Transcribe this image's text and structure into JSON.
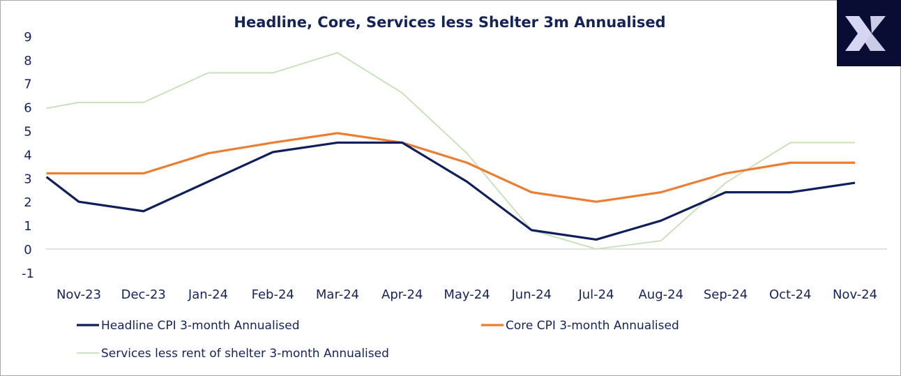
{
  "chart_data": {
    "type": "line",
    "title": "Headline, Core, Services less Shelter 3m Annualised",
    "xlabel": "",
    "ylabel": "",
    "ylim": [
      -1,
      9
    ],
    "yticks": [
      "-1",
      "0",
      "1",
      "2",
      "3",
      "4",
      "5",
      "6",
      "7",
      "8",
      "9"
    ],
    "categories": [
      "Nov-23",
      "Dec-23",
      "Jan-24",
      "Feb-24",
      "Mar-24",
      "Apr-24",
      "May-24",
      "Jun-24",
      "Jul-24",
      "Aug-24",
      "Sep-24",
      "Oct-24",
      "Nov-24"
    ],
    "x": [
      -0.5,
      0,
      1,
      2,
      3,
      4,
      5,
      6,
      7,
      8,
      9,
      10,
      11,
      12
    ],
    "series": [
      {
        "name": "Headline CPI 3-month Annualised",
        "color": "#0f1f5c",
        "values": [
          3.05,
          2.0,
          1.6,
          2.85,
          4.1,
          4.5,
          4.5,
          2.85,
          0.8,
          0.4,
          1.2,
          2.4,
          2.4,
          2.8
        ]
      },
      {
        "name": "Core CPI 3-month Annualised",
        "color": "#ed7d31",
        "values": [
          3.2,
          3.2,
          3.2,
          4.05,
          4.5,
          4.9,
          4.5,
          3.65,
          2.4,
          2.0,
          2.4,
          3.2,
          3.65,
          3.65
        ]
      },
      {
        "name": "Services less rent of shelter 3-month Annualised",
        "color": "#c5e0b4",
        "values": [
          5.95,
          6.2,
          6.2,
          7.45,
          7.45,
          8.3,
          6.6,
          4.05,
          0.8,
          0.0,
          0.35,
          2.8,
          4.5,
          4.5
        ]
      }
    ],
    "grid": false,
    "legend": "bottom"
  },
  "logo": {
    "text": "X"
  }
}
